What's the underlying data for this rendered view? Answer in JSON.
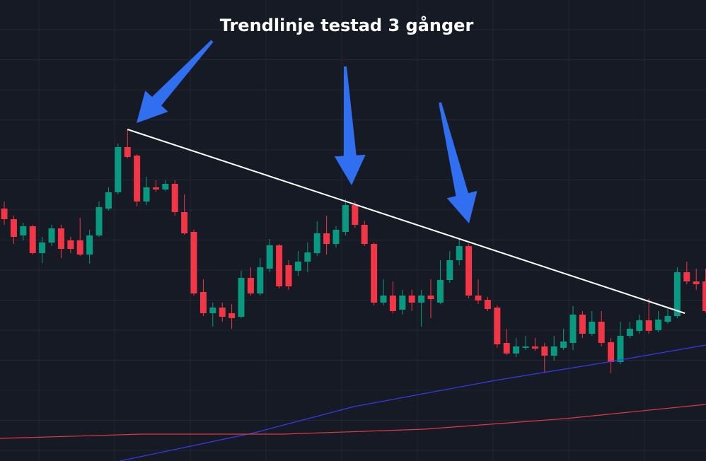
{
  "chart_data": {
    "type": "candlestick",
    "annotation": "Trendlinje testad 3 gånger",
    "xlim": [
      -0.45,
      74.03
    ],
    "ylim": [
      0,
      652
    ],
    "up_color": "#089981",
    "down_color": "#f23645",
    "open": [
      357,
      342,
      319,
      332,
      294,
      309,
      329,
      312,
      312,
      292,
      319,
      357,
      380,
      444,
      432,
      367,
      387,
      384,
      392,
      352,
      324,
      239,
      209,
      217,
      209,
      204,
      259,
      237,
      272,
      305,
      277,
      269,
      282,
      294,
      322,
      307,
      324,
      362,
      334,
      307,
      224,
      234,
      214,
      234,
      224,
      234,
      224,
      256,
      284,
      304,
      234,
      228,
      217,
      167,
      152,
      160,
      162,
      162,
      149,
      160,
      167,
      207,
      180,
      197,
      168,
      140,
      177,
      184,
      199,
      185,
      197,
      205,
      267,
      254,
      254
    ],
    "high": [
      367,
      347,
      337,
      334,
      317,
      334,
      334,
      317,
      344,
      327,
      367,
      387,
      449,
      469,
      434,
      402,
      397,
      397,
      397,
      377,
      327,
      257,
      224,
      224,
      222,
      269,
      274,
      287,
      314,
      307,
      284,
      297,
      309,
      339,
      347,
      332,
      370,
      367,
      340,
      309,
      257,
      254,
      242,
      242,
      242,
      257,
      284,
      297,
      314,
      307,
      257,
      232,
      220,
      187,
      174,
      177,
      174,
      167,
      177,
      187,
      219,
      212,
      212,
      212,
      174,
      197,
      197,
      207,
      230,
      212,
      217,
      274,
      282,
      272,
      272
    ],
    "low": [
      334,
      307,
      312,
      292,
      280,
      304,
      287,
      294,
      290,
      279,
      317,
      354,
      377,
      428,
      360,
      362,
      380,
      382,
      347,
      320,
      234,
      205,
      190,
      197,
      187,
      202,
      234,
      234,
      267,
      244,
      242,
      262,
      267,
      290,
      292,
      302,
      319,
      330,
      304,
      220,
      220,
      209,
      207,
      212,
      190,
      202,
      222,
      252,
      277,
      230,
      222,
      212,
      160,
      150,
      147,
      157,
      156,
      125,
      142,
      157,
      157,
      174,
      177,
      162,
      124,
      137,
      174,
      180,
      180,
      182,
      194,
      202,
      250,
      242,
      210
    ],
    "close": [
      342,
      317,
      332,
      294,
      309,
      329,
      300,
      300,
      292,
      319,
      359,
      380,
      444,
      430,
      367,
      387,
      384,
      392,
      352,
      322,
      237,
      209,
      217,
      204,
      202,
      259,
      237,
      274,
      305,
      247,
      247,
      282,
      295,
      322,
      307,
      327,
      362,
      334,
      307,
      224,
      234,
      212,
      234,
      224,
      234,
      229,
      256,
      284,
      304,
      234,
      227,
      215,
      165,
      152,
      162,
      162,
      159,
      149,
      162,
      169,
      207,
      180,
      197,
      167,
      140,
      177,
      187,
      199,
      184,
      200,
      205,
      267,
      254,
      250,
      212
    ],
    "lines": [
      {
        "color": "#3a3ae8",
        "x": [
          12.2,
          26.4,
          36.9,
          51.8,
          63.7,
          74
        ],
        "values": [
          0,
          40,
          77,
          114,
          140,
          164
        ]
      },
      {
        "color": "#e03a3e",
        "x": [
          -0.45,
          14.5,
          29.4,
          44.3,
          59.2,
          74
        ],
        "values": [
          32,
          38,
          38,
          45,
          60,
          80
        ]
      },
      {
        "color": "#ffffff",
        "x": [
          13,
          71.8
        ],
        "values": [
          469,
          209
        ]
      }
    ]
  }
}
